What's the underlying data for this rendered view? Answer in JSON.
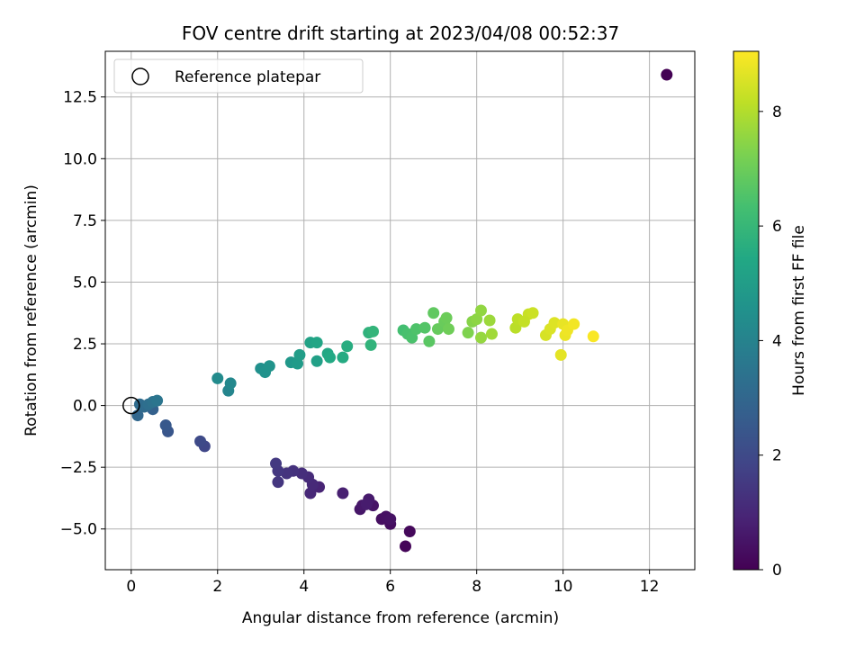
{
  "chart_data": {
    "type": "scatter",
    "title": "FOV centre drift starting at 2023/04/08 00:52:37",
    "xlabel": "Angular distance from reference (arcmin)",
    "ylabel": "Rotation from reference (arcmin)",
    "xlim": [
      -0.6,
      13.05
    ],
    "ylim": [
      -6.65,
      14.35
    ],
    "xticks": [
      0,
      2,
      4,
      6,
      8,
      10,
      12
    ],
    "xtick_labels": [
      "0",
      "2",
      "4",
      "6",
      "8",
      "10",
      "12"
    ],
    "yticks": [
      -5.0,
      -2.5,
      0.0,
      2.5,
      5.0,
      7.5,
      10.0,
      12.5
    ],
    "ytick_labels": [
      "−5.0",
      "−2.5",
      "0.0",
      "2.5",
      "5.0",
      "7.5",
      "10.0",
      "12.5"
    ],
    "grid": true,
    "legend": {
      "position": "upper-left",
      "entries": [
        {
          "label": "Reference platepar",
          "marker": "open-circle"
        }
      ]
    },
    "reference_point": {
      "x": 0,
      "y": 0
    },
    "colorbar": {
      "label": "Hours from first FF file",
      "colormap": "viridis",
      "range": [
        0,
        9.05
      ],
      "ticks": [
        0,
        2,
        4,
        6,
        8
      ],
      "tick_labels": [
        "0",
        "2",
        "4",
        "6",
        "8"
      ]
    },
    "points": [
      {
        "x": 6.35,
        "y": -5.7,
        "c": 0.1
      },
      {
        "x": 6.45,
        "y": -5.1,
        "c": 0.2
      },
      {
        "x": 6.0,
        "y": -4.8,
        "c": 0.3
      },
      {
        "x": 5.8,
        "y": -4.6,
        "c": 0.35
      },
      {
        "x": 5.9,
        "y": -4.5,
        "c": 0.4
      },
      {
        "x": 6.0,
        "y": -4.6,
        "c": 0.45
      },
      {
        "x": 5.6,
        "y": -4.05,
        "c": 0.5
      },
      {
        "x": 5.3,
        "y": -4.2,
        "c": 0.55
      },
      {
        "x": 5.35,
        "y": -4.05,
        "c": 0.6
      },
      {
        "x": 5.5,
        "y": -3.8,
        "c": 0.65
      },
      {
        "x": 5.45,
        "y": -4.0,
        "c": 0.7
      },
      {
        "x": 4.9,
        "y": -3.55,
        "c": 0.8
      },
      {
        "x": 4.35,
        "y": -3.3,
        "c": 0.9
      },
      {
        "x": 4.15,
        "y": -3.55,
        "c": 1.0
      },
      {
        "x": 4.2,
        "y": -3.2,
        "c": 1.05
      },
      {
        "x": 4.1,
        "y": -2.9,
        "c": 1.1
      },
      {
        "x": 3.95,
        "y": -2.75,
        "c": 1.2
      },
      {
        "x": 3.75,
        "y": -2.65,
        "c": 1.3
      },
      {
        "x": 3.6,
        "y": -2.75,
        "c": 1.35
      },
      {
        "x": 3.4,
        "y": -3.1,
        "c": 1.4
      },
      {
        "x": 3.4,
        "y": -2.65,
        "c": 1.45
      },
      {
        "x": 3.35,
        "y": -2.35,
        "c": 1.5
      },
      {
        "x": 1.7,
        "y": -1.65,
        "c": 1.9
      },
      {
        "x": 1.6,
        "y": -1.45,
        "c": 2.0
      },
      {
        "x": 0.85,
        "y": -1.05,
        "c": 2.4
      },
      {
        "x": 0.8,
        "y": -0.8,
        "c": 2.5
      },
      {
        "x": 0.5,
        "y": -0.15,
        "c": 2.8
      },
      {
        "x": 0.15,
        "y": -0.4,
        "c": 3.0
      },
      {
        "x": 0.3,
        "y": -0.05,
        "c": 3.1
      },
      {
        "x": 0.2,
        "y": 0.05,
        "c": 3.2
      },
      {
        "x": 0.4,
        "y": 0.05,
        "c": 3.3
      },
      {
        "x": 0.5,
        "y": 0.15,
        "c": 3.4
      },
      {
        "x": 0.6,
        "y": 0.2,
        "c": 3.5
      },
      {
        "x": 2.25,
        "y": 0.6,
        "c": 4.1
      },
      {
        "x": 2.3,
        "y": 0.9,
        "c": 4.2
      },
      {
        "x": 2.0,
        "y": 1.1,
        "c": 4.3
      },
      {
        "x": 3.0,
        "y": 1.5,
        "c": 4.5
      },
      {
        "x": 3.1,
        "y": 1.35,
        "c": 4.55
      },
      {
        "x": 3.2,
        "y": 1.6,
        "c": 4.6
      },
      {
        "x": 3.7,
        "y": 1.75,
        "c": 4.8
      },
      {
        "x": 3.85,
        "y": 1.7,
        "c": 4.9
      },
      {
        "x": 3.9,
        "y": 2.05,
        "c": 5.0
      },
      {
        "x": 4.3,
        "y": 1.8,
        "c": 5.1
      },
      {
        "x": 4.15,
        "y": 2.55,
        "c": 5.2
      },
      {
        "x": 4.3,
        "y": 2.55,
        "c": 5.3
      },
      {
        "x": 4.55,
        "y": 2.1,
        "c": 5.4
      },
      {
        "x": 4.6,
        "y": 1.95,
        "c": 5.45
      },
      {
        "x": 4.9,
        "y": 1.95,
        "c": 5.5
      },
      {
        "x": 5.0,
        "y": 2.4,
        "c": 5.6
      },
      {
        "x": 5.5,
        "y": 2.95,
        "c": 5.8
      },
      {
        "x": 5.6,
        "y": 3.0,
        "c": 5.9
      },
      {
        "x": 5.55,
        "y": 2.45,
        "c": 5.85
      },
      {
        "x": 6.3,
        "y": 3.05,
        "c": 6.3
      },
      {
        "x": 6.4,
        "y": 2.9,
        "c": 6.4
      },
      {
        "x": 6.5,
        "y": 2.75,
        "c": 6.45
      },
      {
        "x": 6.6,
        "y": 3.1,
        "c": 6.5
      },
      {
        "x": 6.8,
        "y": 3.15,
        "c": 6.6
      },
      {
        "x": 6.9,
        "y": 2.6,
        "c": 6.7
      },
      {
        "x": 7.0,
        "y": 3.75,
        "c": 6.8
      },
      {
        "x": 7.1,
        "y": 3.1,
        "c": 6.9
      },
      {
        "x": 7.25,
        "y": 3.4,
        "c": 6.95
      },
      {
        "x": 7.3,
        "y": 3.55,
        "c": 7.0
      },
      {
        "x": 7.35,
        "y": 3.1,
        "c": 7.05
      },
      {
        "x": 7.8,
        "y": 2.95,
        "c": 7.3
      },
      {
        "x": 7.9,
        "y": 3.4,
        "c": 7.4
      },
      {
        "x": 8.0,
        "y": 3.5,
        "c": 7.5
      },
      {
        "x": 8.1,
        "y": 3.85,
        "c": 7.55
      },
      {
        "x": 8.1,
        "y": 2.75,
        "c": 7.6
      },
      {
        "x": 8.3,
        "y": 3.45,
        "c": 7.7
      },
      {
        "x": 8.35,
        "y": 2.9,
        "c": 7.75
      },
      {
        "x": 8.9,
        "y": 3.15,
        "c": 8.1
      },
      {
        "x": 8.95,
        "y": 3.5,
        "c": 8.15
      },
      {
        "x": 9.2,
        "y": 3.7,
        "c": 8.3
      },
      {
        "x": 9.3,
        "y": 3.75,
        "c": 8.35
      },
      {
        "x": 9.1,
        "y": 3.4,
        "c": 8.25
      },
      {
        "x": 9.6,
        "y": 2.85,
        "c": 8.5
      },
      {
        "x": 9.7,
        "y": 3.1,
        "c": 8.55
      },
      {
        "x": 9.8,
        "y": 3.35,
        "c": 8.6
      },
      {
        "x": 9.95,
        "y": 2.05,
        "c": 8.7
      },
      {
        "x": 10.0,
        "y": 3.3,
        "c": 8.75
      },
      {
        "x": 10.05,
        "y": 2.85,
        "c": 8.8
      },
      {
        "x": 10.1,
        "y": 3.05,
        "c": 8.85
      },
      {
        "x": 10.25,
        "y": 3.3,
        "c": 8.9
      },
      {
        "x": 10.7,
        "y": 2.8,
        "c": 9.0
      },
      {
        "x": 12.4,
        "y": 13.4,
        "c": 0.0
      }
    ]
  }
}
